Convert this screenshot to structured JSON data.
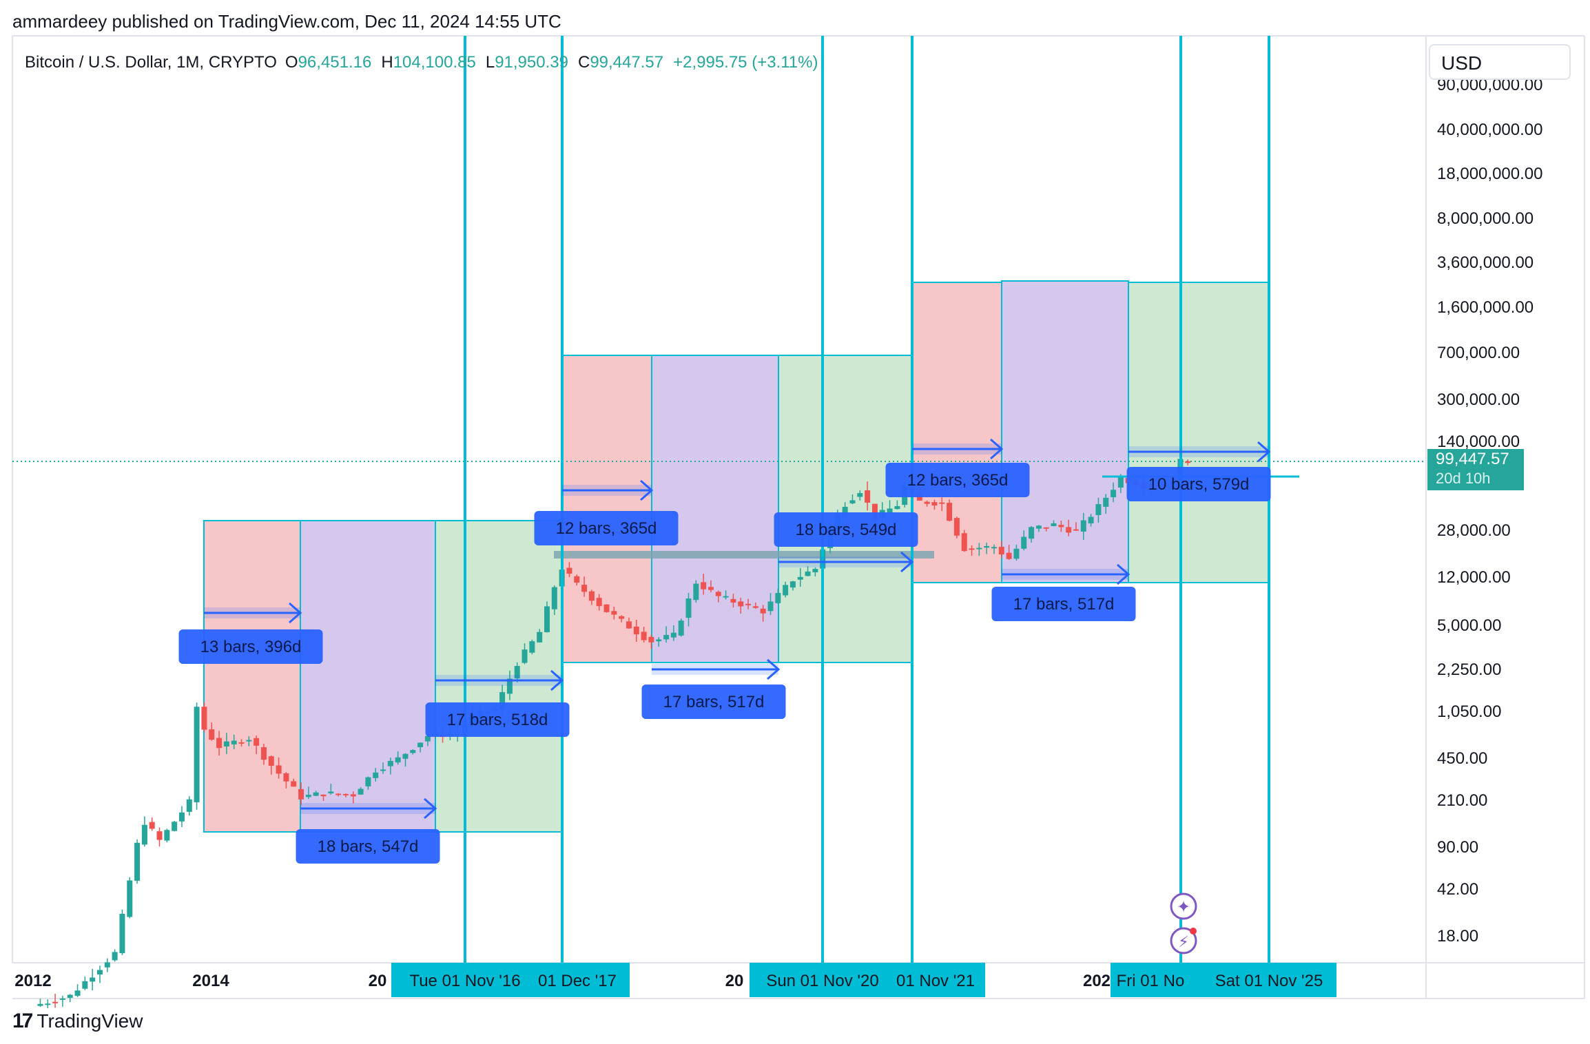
{
  "header": {
    "publisher_line": "ammardeey published on TradingView.com, Dec 11, 2024 14:55 UTC"
  },
  "legend": {
    "symbol": "Bitcoin / U.S. Dollar, 1M, CRYPTO",
    "o_label": "O",
    "o_value": "96,451.16",
    "h_label": "H",
    "h_value": "104,100.85",
    "l_label": "L",
    "l_value": "91,950.39",
    "c_label": "C",
    "c_value": "99,447.57",
    "change": "+2,995.75 (+3.11%)"
  },
  "currency_button": "USD",
  "price_badge": {
    "price": "99,447.57",
    "countdown": "20d 10h"
  },
  "footer": {
    "brand": "TradingView"
  },
  "colors": {
    "up": "#26a69a",
    "down": "#ef5350",
    "cyan_line": "#00bcd4",
    "label_blue": "#2962ff",
    "red_zone": "#f7c6c9",
    "purple_zone": "#d5c8ec",
    "green_zone": "#cfe8d2"
  },
  "chart_data": {
    "type": "candlestick",
    "title": "Bitcoin / U.S. Dollar, 1M, CRYPTO",
    "y_scale": "log",
    "y_ticks": [
      "90,000,000.00",
      "40,000,000.00",
      "18,000,000.00",
      "8,000,000.00",
      "3,600,000.00",
      "1,600,000.00",
      "700,000.00",
      "300,000.00",
      "140,000.00",
      "28,000.00",
      "12,000.00",
      "5,000.00",
      "2,250.00",
      "1,050.00",
      "450.00",
      "210.00",
      "90.00",
      "42.00",
      "18.00"
    ],
    "x_ticks": [
      "2012",
      "2014",
      "20",
      "20",
      "202"
    ],
    "x_date_badges": [
      "Tue 01 Nov '16",
      "01 Dec '17",
      "Sun 01 Nov '20",
      "01 Nov '21",
      "Fri 01 No",
      "Sat 01 Nov '25"
    ],
    "current_price": 99447.57,
    "cycle_lines": [
      "2016-11-01",
      "2017-12-01",
      "2020-11-01",
      "2021-11-01",
      "2024-11-01",
      "2025-11-01"
    ],
    "measure_labels": [
      "13 bars, 396d",
      "18 bars, 547d",
      "17 bars, 518d",
      "12 bars, 365d",
      "17 bars, 517d",
      "18 bars, 549d",
      "12 bars, 365d",
      "17 bars, 517d",
      "10 bars, 579d"
    ],
    "price_path": [
      [
        "2012-01",
        5
      ],
      [
        "2012-06",
        6
      ],
      [
        "2012-12",
        13
      ],
      [
        "2013-03",
        93
      ],
      [
        "2013-04",
        140
      ],
      [
        "2013-06",
        100
      ],
      [
        "2013-10",
        200
      ],
      [
        "2013-11",
        1130
      ],
      [
        "2013-12",
        750
      ],
      [
        "2014-02",
        550
      ],
      [
        "2014-06",
        640
      ],
      [
        "2014-09",
        390
      ],
      [
        "2015-01",
        220
      ],
      [
        "2015-04",
        235
      ],
      [
        "2015-08",
        230
      ],
      [
        "2015-11",
        360
      ],
      [
        "2016-02",
        440
      ],
      [
        "2016-06",
        670
      ],
      [
        "2016-10",
        700
      ],
      [
        "2016-12",
        960
      ],
      [
        "2017-03",
        1080
      ],
      [
        "2017-06",
        2500
      ],
      [
        "2017-09",
        4360
      ],
      [
        "2017-11",
        10000
      ],
      [
        "2017-12",
        14000
      ],
      [
        "2018-02",
        10300
      ],
      [
        "2018-06",
        6400
      ],
      [
        "2018-11",
        4000
      ],
      [
        "2018-12",
        3700
      ],
      [
        "2019-03",
        4100
      ],
      [
        "2019-06",
        10800
      ],
      [
        "2019-09",
        8300
      ],
      [
        "2020-03",
        6400
      ],
      [
        "2020-07",
        11300
      ],
      [
        "2020-10",
        13800
      ],
      [
        "2020-12",
        29000
      ],
      [
        "2021-02",
        45000
      ],
      [
        "2021-04",
        57000
      ],
      [
        "2021-06",
        35000
      ],
      [
        "2021-09",
        43800
      ],
      [
        "2021-10",
        61300
      ],
      [
        "2021-12",
        46300
      ],
      [
        "2022-03",
        45500
      ],
      [
        "2022-06",
        19900
      ],
      [
        "2022-10",
        20500
      ],
      [
        "2022-12",
        16500
      ],
      [
        "2023-03",
        28500
      ],
      [
        "2023-06",
        30500
      ],
      [
        "2023-09",
        27000
      ],
      [
        "2023-12",
        42300
      ],
      [
        "2024-03",
        71300
      ],
      [
        "2024-06",
        62700
      ],
      [
        "2024-09",
        63300
      ],
      [
        "2024-10",
        70300
      ],
      [
        "2024-11",
        96450
      ],
      [
        "2024-12",
        99450
      ]
    ]
  }
}
